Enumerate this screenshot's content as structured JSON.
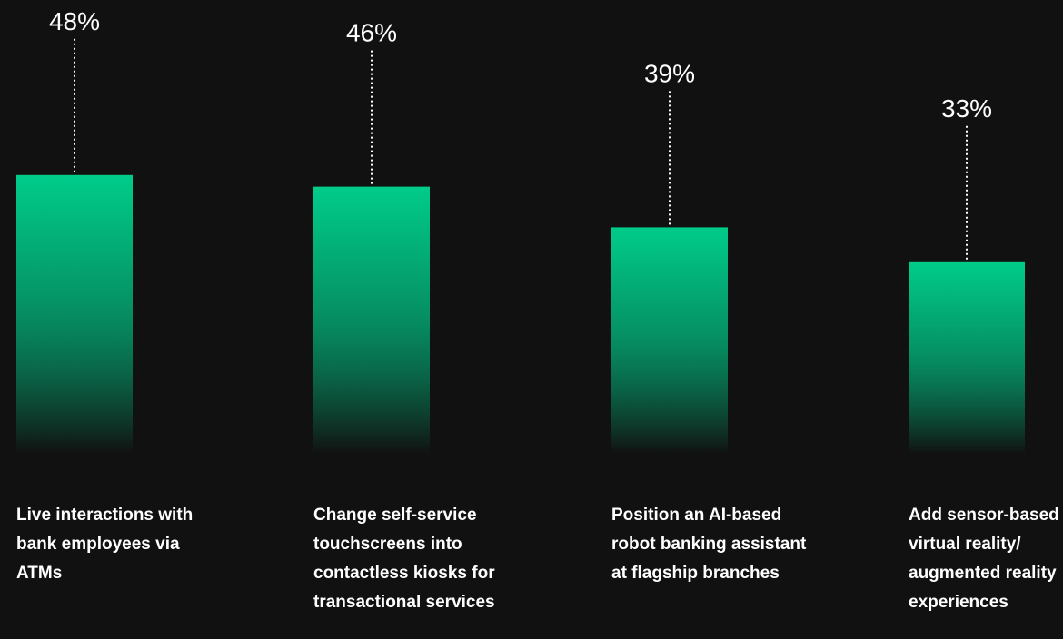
{
  "chart_data": {
    "type": "bar",
    "categories": [
      "Live interactions with bank employees via ATMs",
      "Change self-service touchscreens into contactless kiosks for transactional services",
      "Position an AI-based robot banking assistant at flagship branches",
      "Add sensor-based virtual reality/ augmented reality experiences"
    ],
    "values": [
      48,
      46,
      39,
      33
    ],
    "value_labels": [
      "48%",
      "46%",
      "39%",
      "33%"
    ],
    "unit": "%",
    "title": "",
    "xlabel": "",
    "ylabel": "",
    "ylim": [
      0,
      100
    ],
    "grid": false,
    "legend": "none",
    "colors": {
      "background": "#111111",
      "bar_top": "#00CC8A",
      "bar_bottom": "#111111",
      "text": "#ffffff",
      "leader_line": "#ffffff"
    }
  }
}
